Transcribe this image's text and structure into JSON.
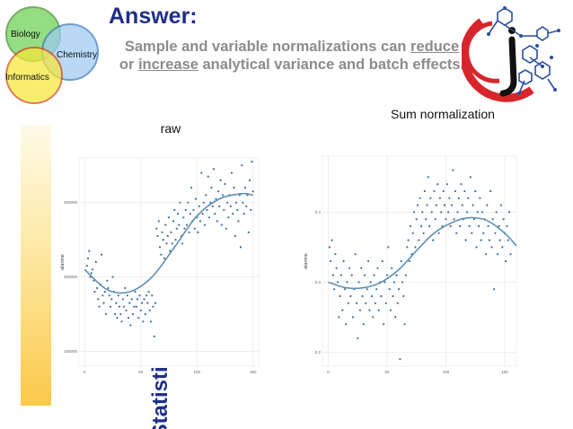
{
  "header": {
    "title": "Answer:",
    "subtitle_pre": "Sample and variable normalizations  can ",
    "subtitle_u1": "reduce",
    "subtitle_mid": " or ",
    "subtitle_u2": "increase",
    "subtitle_post": " analytical variance and batch effects."
  },
  "venn": {
    "biology": "Biology",
    "chemistry": "Chemistry",
    "informatics": "Informatics",
    "colors": {
      "biology": "#6cd153",
      "chemistry": "#9dcaf2",
      "informatics": "#f7e73a"
    }
  },
  "sidebar": {
    "label": "Statistics"
  },
  "logo": {
    "icon": "molecule-logo-icon",
    "colors": {
      "ring": "#d7262b",
      "molecule": "#2b4fa0",
      "letter": "#111111"
    }
  },
  "colors": {
    "point": "#3f6f99",
    "fit": "#5d8fb5",
    "grid": "#ebebeb",
    "accent": "#1f2f88"
  },
  "chart_data": [
    {
      "type": "scatter",
      "title": "raw",
      "xlabel": "",
      "ylabel": "alanine",
      "xlim": [
        -5,
        155
      ],
      "ylim": [
        80000,
        360000
      ],
      "xticks": [
        0,
        50,
        100,
        150
      ],
      "yticks": [
        100000,
        200000,
        300000
      ],
      "ytick_labels": [
        "100000",
        "200000",
        "300000"
      ],
      "grid": true,
      "smooth_fit": {
        "x": [
          0,
          20,
          40,
          60,
          80,
          100,
          120,
          140,
          150
        ],
        "y": [
          210000,
          183000,
          180000,
          200000,
          240000,
          282000,
          305000,
          312000,
          310000
        ]
      },
      "points": [
        [
          2,
          215000
        ],
        [
          3,
          225000
        ],
        [
          4,
          235000
        ],
        [
          5,
          200000
        ],
        [
          6,
          205000
        ],
        [
          7,
          210000
        ],
        [
          8,
          195000
        ],
        [
          9,
          180000
        ],
        [
          10,
          220000
        ],
        [
          11,
          185000
        ],
        [
          12,
          170000
        ],
        [
          13,
          160000
        ],
        [
          14,
          190000
        ],
        [
          15,
          230000
        ],
        [
          16,
          175000
        ],
        [
          17,
          165000
        ],
        [
          18,
          180000
        ],
        [
          19,
          150000
        ],
        [
          20,
          195000
        ],
        [
          21,
          185000
        ],
        [
          22,
          175000
        ],
        [
          23,
          160000
        ],
        [
          24,
          170000
        ],
        [
          25,
          200000
        ],
        [
          26,
          180000
        ],
        [
          27,
          150000
        ],
        [
          28,
          165000
        ],
        [
          29,
          145000
        ],
        [
          30,
          175000
        ],
        [
          31,
          160000
        ],
        [
          32,
          150000
        ],
        [
          33,
          140000
        ],
        [
          34,
          170000
        ],
        [
          35,
          160000
        ],
        [
          36,
          185000
        ],
        [
          37,
          155000
        ],
        [
          38,
          175000
        ],
        [
          39,
          145000
        ],
        [
          40,
          165000
        ],
        [
          41,
          135000
        ],
        [
          42,
          170000
        ],
        [
          43,
          150000
        ],
        [
          44,
          160000
        ],
        [
          45,
          180000
        ],
        [
          46,
          160000
        ],
        [
          47,
          170000
        ],
        [
          48,
          145000
        ],
        [
          49,
          175000
        ],
        [
          50,
          155000
        ],
        [
          51,
          165000
        ],
        [
          52,
          140000
        ],
        [
          53,
          170000
        ],
        [
          54,
          150000
        ],
        [
          55,
          175000
        ],
        [
          56,
          165000
        ],
        [
          57,
          180000
        ],
        [
          58,
          155000
        ],
        [
          59,
          140000
        ],
        [
          60,
          175000
        ],
        [
          61,
          160000
        ],
        [
          62,
          120000
        ],
        [
          63,
          165000
        ],
        [
          64,
          265000
        ],
        [
          65,
          255000
        ],
        [
          66,
          275000
        ],
        [
          67,
          240000
        ],
        [
          68,
          230000
        ],
        [
          69,
          260000
        ],
        [
          70,
          250000
        ],
        [
          71,
          225000
        ],
        [
          72,
          270000
        ],
        [
          73,
          245000
        ],
        [
          74,
          255000
        ],
        [
          75,
          280000
        ],
        [
          76,
          235000
        ],
        [
          77,
          260000
        ],
        [
          78,
          245000
        ],
        [
          79,
          275000
        ],
        [
          80,
          290000
        ],
        [
          81,
          250000
        ],
        [
          82,
          265000
        ],
        [
          83,
          285000
        ],
        [
          84,
          270000
        ],
        [
          85,
          300000
        ],
        [
          86,
          255000
        ],
        [
          87,
          245000
        ],
        [
          88,
          280000
        ],
        [
          89,
          265000
        ],
        [
          90,
          290000
        ],
        [
          91,
          270000
        ],
        [
          92,
          300000
        ],
        [
          93,
          260000
        ],
        [
          94,
          285000
        ],
        [
          95,
          320000
        ],
        [
          96,
          275000
        ],
        [
          97,
          290000
        ],
        [
          98,
          265000
        ],
        [
          99,
          305000
        ],
        [
          100,
          280000
        ],
        [
          101,
          260000
        ],
        [
          102,
          295000
        ],
        [
          103,
          275000
        ],
        [
          104,
          340000
        ],
        [
          105,
          285000
        ],
        [
          106,
          300000
        ],
        [
          107,
          270000
        ],
        [
          108,
          310000
        ],
        [
          109,
          290000
        ],
        [
          110,
          335000
        ],
        [
          111,
          280000
        ],
        [
          112,
          300000
        ],
        [
          113,
          320000
        ],
        [
          114,
          295000
        ],
        [
          115,
          345000
        ],
        [
          116,
          285000
        ],
        [
          117,
          305000
        ],
        [
          118,
          275000
        ],
        [
          119,
          315000
        ],
        [
          120,
          295000
        ],
        [
          121,
          330000
        ],
        [
          122,
          270000
        ],
        [
          123,
          310000
        ],
        [
          124,
          290000
        ],
        [
          125,
          325000
        ],
        [
          126,
          265000
        ],
        [
          127,
          300000
        ],
        [
          128,
          280000
        ],
        [
          129,
          310000
        ],
        [
          130,
          295000
        ],
        [
          131,
          340000
        ],
        [
          132,
          285000
        ],
        [
          133,
          320000
        ],
        [
          134,
          255000
        ],
        [
          135,
          300000
        ],
        [
          136,
          290000
        ],
        [
          137,
          275000
        ],
        [
          138,
          310000
        ],
        [
          139,
          240000
        ],
        [
          140,
          350000
        ],
        [
          141,
          300000
        ],
        [
          142,
          285000
        ],
        [
          143,
          320000
        ],
        [
          144,
          295000
        ],
        [
          145,
          310000
        ],
        [
          146,
          260000
        ],
        [
          147,
          330000
        ],
        [
          148,
          290000
        ],
        [
          149,
          355000
        ],
        [
          150,
          315000
        ]
      ]
    },
    {
      "type": "scatter",
      "title": "Sum normalization",
      "xlabel": "",
      "ylabel": "alanine",
      "xlim": [
        -5,
        160
      ],
      "ylim": [
        0.18,
        0.48
      ],
      "xticks": [
        0,
        50,
        100,
        150
      ],
      "yticks": [
        0.2,
        0.3,
        0.4
      ],
      "ytick_labels": [
        "0.2",
        "0.3",
        "0.4"
      ],
      "grid": true,
      "smooth_fit": {
        "x": [
          0,
          15,
          30,
          45,
          60,
          75,
          90,
          105,
          120,
          135,
          150,
          160
        ],
        "y": [
          0.3,
          0.292,
          0.292,
          0.3,
          0.318,
          0.345,
          0.37,
          0.385,
          0.392,
          0.388,
          0.37,
          0.352
        ]
      },
      "points": [
        [
          1,
          0.35
        ],
        [
          2,
          0.33
        ],
        [
          3,
          0.36
        ],
        [
          4,
          0.31
        ],
        [
          5,
          0.29
        ],
        [
          6,
          0.34
        ],
        [
          7,
          0.32
        ],
        [
          8,
          0.3
        ],
        [
          9,
          0.25
        ],
        [
          10,
          0.28
        ],
        [
          11,
          0.31
        ],
        [
          12,
          0.26
        ],
        [
          13,
          0.33
        ],
        [
          14,
          0.29
        ],
        [
          15,
          0.24
        ],
        [
          16,
          0.3
        ],
        [
          17,
          0.27
        ],
        [
          18,
          0.32
        ],
        [
          19,
          0.28
        ],
        [
          20,
          0.31
        ],
        [
          21,
          0.25
        ],
        [
          22,
          0.29
        ],
        [
          23,
          0.34
        ],
        [
          24,
          0.27
        ],
        [
          25,
          0.22
        ],
        [
          26,
          0.3
        ],
        [
          27,
          0.26
        ],
        [
          28,
          0.32
        ],
        [
          29,
          0.28
        ],
        [
          30,
          0.24
        ],
        [
          31,
          0.31
        ],
        [
          32,
          0.27
        ],
        [
          33,
          0.29
        ],
        [
          34,
          0.33
        ],
        [
          35,
          0.26
        ],
        [
          36,
          0.3
        ],
        [
          37,
          0.28
        ],
        [
          38,
          0.25
        ],
        [
          39,
          0.31
        ],
        [
          40,
          0.27
        ],
        [
          41,
          0.29
        ],
        [
          42,
          0.32
        ],
        [
          43,
          0.26
        ],
        [
          44,
          0.3
        ],
        [
          45,
          0.28
        ],
        [
          46,
          0.33
        ],
        [
          47,
          0.24
        ],
        [
          48,
          0.3
        ],
        [
          49,
          0.27
        ],
        [
          50,
          0.31
        ],
        [
          51,
          0.35
        ],
        [
          52,
          0.29
        ],
        [
          53,
          0.26
        ],
        [
          54,
          0.32
        ],
        [
          55,
          0.28
        ],
        [
          56,
          0.3
        ],
        [
          57,
          0.25
        ],
        [
          58,
          0.31
        ],
        [
          59,
          0.27
        ],
        [
          60,
          0.29
        ],
        [
          61,
          0.19
        ],
        [
          62,
          0.33
        ],
        [
          63,
          0.3
        ],
        [
          64,
          0.28
        ],
        [
          65,
          0.24
        ],
        [
          66,
          0.31
        ],
        [
          67,
          0.35
        ],
        [
          68,
          0.36
        ],
        [
          69,
          0.33
        ],
        [
          70,
          0.38
        ],
        [
          71,
          0.34
        ],
        [
          72,
          0.37
        ],
        [
          73,
          0.4
        ],
        [
          74,
          0.35
        ],
        [
          75,
          0.39
        ],
        [
          76,
          0.41
        ],
        [
          77,
          0.36
        ],
        [
          78,
          0.42
        ],
        [
          79,
          0.38
        ],
        [
          80,
          0.4
        ],
        [
          81,
          0.37
        ],
        [
          82,
          0.43
        ],
        [
          83,
          0.39
        ],
        [
          84,
          0.41
        ],
        [
          85,
          0.45
        ],
        [
          86,
          0.38
        ],
        [
          87,
          0.42
        ],
        [
          88,
          0.4
        ],
        [
          89,
          0.36
        ],
        [
          90,
          0.43
        ],
        [
          91,
          0.39
        ],
        [
          92,
          0.41
        ],
        [
          93,
          0.44
        ],
        [
          94,
          0.37
        ],
        [
          95,
          0.42
        ],
        [
          96,
          0.4
        ],
        [
          97,
          0.38
        ],
        [
          98,
          0.43
        ],
        [
          99,
          0.41
        ],
        [
          100,
          0.39
        ],
        [
          101,
          0.44
        ],
        [
          102,
          0.4
        ],
        [
          103,
          0.42
        ],
        [
          104,
          0.38
        ],
        [
          105,
          0.41
        ],
        [
          106,
          0.46
        ],
        [
          107,
          0.39
        ],
        [
          108,
          0.43
        ],
        [
          109,
          0.37
        ],
        [
          110,
          0.4
        ],
        [
          111,
          0.42
        ],
        [
          112,
          0.38
        ],
        [
          113,
          0.44
        ],
        [
          114,
          0.41
        ],
        [
          115,
          0.39
        ],
        [
          116,
          0.43
        ],
        [
          117,
          0.36
        ],
        [
          118,
          0.4
        ],
        [
          119,
          0.42
        ],
        [
          120,
          0.38
        ],
        [
          121,
          0.45
        ],
        [
          122,
          0.37
        ],
        [
          123,
          0.41
        ],
        [
          124,
          0.39
        ],
        [
          125,
          0.43
        ],
        [
          126,
          0.35
        ],
        [
          127,
          0.4
        ],
        [
          128,
          0.38
        ],
        [
          129,
          0.42
        ],
        [
          130,
          0.36
        ],
        [
          131,
          0.4
        ],
        [
          132,
          0.37
        ],
        [
          133,
          0.39
        ],
        [
          134,
          0.34
        ],
        [
          135,
          0.41
        ],
        [
          136,
          0.38
        ],
        [
          137,
          0.36
        ],
        [
          138,
          0.43
        ],
        [
          139,
          0.35
        ],
        [
          140,
          0.39
        ],
        [
          141,
          0.29
        ],
        [
          142,
          0.37
        ],
        [
          143,
          0.4
        ],
        [
          144,
          0.34
        ],
        [
          145,
          0.38
        ],
        [
          146,
          0.36
        ],
        [
          147,
          0.41
        ],
        [
          148,
          0.35
        ],
        [
          149,
          0.39
        ],
        [
          150,
          0.37
        ],
        [
          151,
          0.33
        ],
        [
          152,
          0.38
        ],
        [
          153,
          0.36
        ],
        [
          154,
          0.4
        ],
        [
          155,
          0.34
        ]
      ]
    }
  ]
}
